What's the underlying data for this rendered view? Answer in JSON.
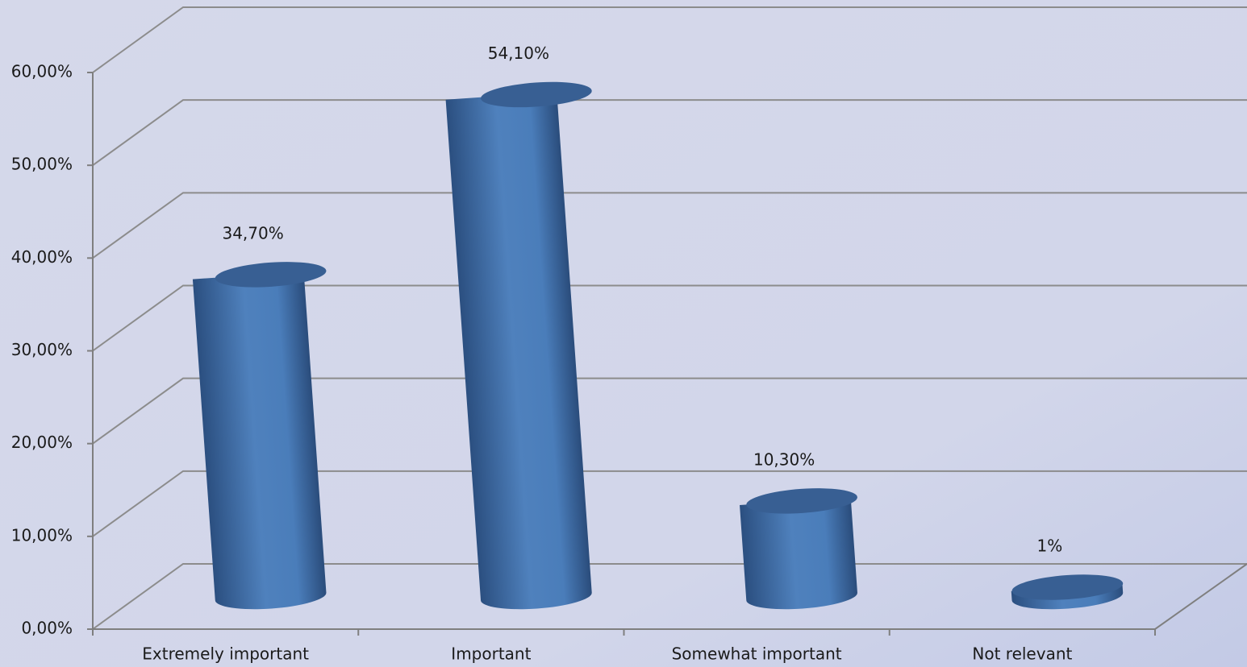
{
  "chart_data": {
    "type": "bar",
    "categories": [
      "Extremely important",
      "Important",
      "Somewhat important",
      "Not relevant"
    ],
    "values": [
      34.7,
      54.1,
      10.3,
      1
    ],
    "value_labels": [
      "34,70%",
      "54,10%",
      "10,30%",
      "1%"
    ],
    "color": "#4f81bd",
    "ylim": [
      0,
      60
    ],
    "yticks": [
      {
        "value": 0,
        "label": "0,00%"
      },
      {
        "value": 10,
        "label": "10,00%"
      },
      {
        "value": 20,
        "label": "20,00%"
      },
      {
        "value": 30,
        "label": "30,00%"
      },
      {
        "value": 40,
        "label": "40,00%"
      },
      {
        "value": 50,
        "label": "50,00%"
      },
      {
        "value": 60,
        "label": "60,00%"
      }
    ],
    "grid": true
  }
}
